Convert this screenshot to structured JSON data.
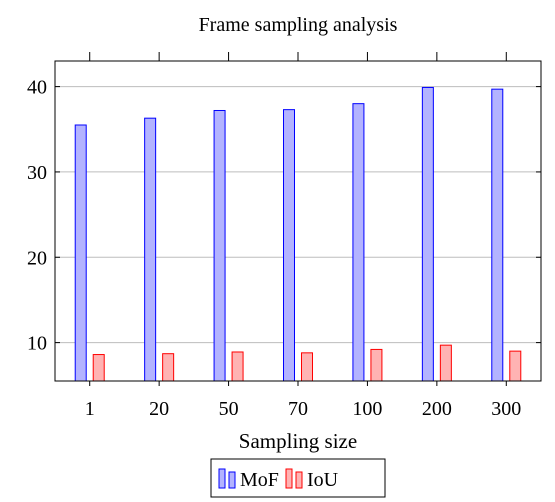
{
  "chart_data": {
    "type": "bar",
    "title": "Frame sampling analysis",
    "xlabel": "Sampling size",
    "ylabel": "",
    "categories": [
      "1",
      "20",
      "50",
      "70",
      "100",
      "200",
      "300"
    ],
    "series": [
      {
        "name": "MoF",
        "values": [
          35.5,
          36.3,
          37.2,
          37.3,
          38.0,
          39.9,
          39.7
        ]
      },
      {
        "name": "IoU",
        "values": [
          8.6,
          8.7,
          8.9,
          8.8,
          9.2,
          9.7,
          9.0
        ]
      }
    ],
    "ylim": [
      5.5,
      43
    ],
    "yticks": [
      10,
      20,
      30,
      40
    ],
    "grid": "horizontal",
    "legend_position": "below",
    "colors": {
      "MoF": {
        "fill": "#b3b3ff",
        "stroke": "#0000ff"
      },
      "IoU": {
        "fill": "#ffb3b3",
        "stroke": "#ff0000"
      }
    }
  }
}
